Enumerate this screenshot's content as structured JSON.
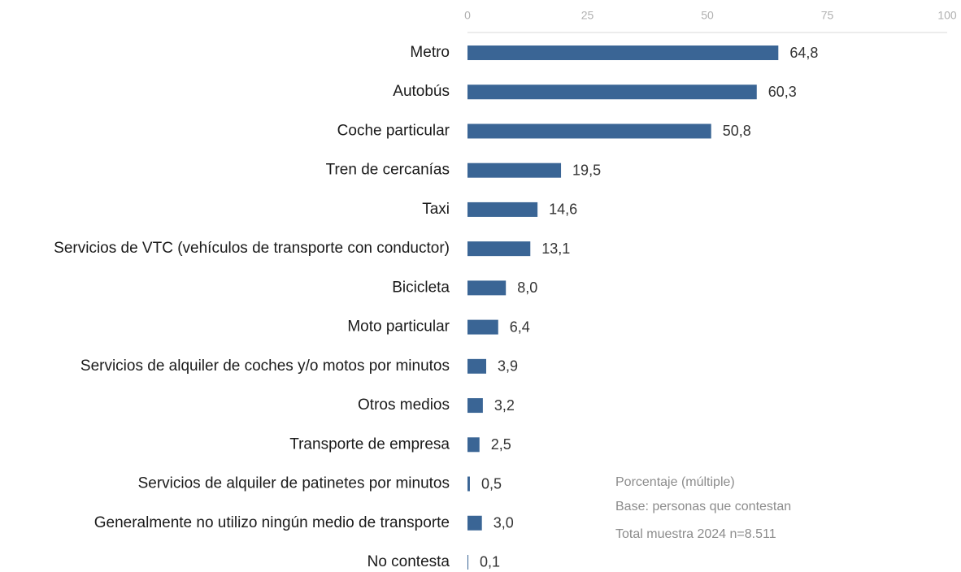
{
  "chart_data": {
    "type": "barh",
    "categories": [
      "Metro",
      "Autobús",
      "Coche particular",
      "Tren de cercanías",
      "Taxi",
      "Servicios de VTC (vehículos de transporte con conductor)",
      "Bicicleta",
      "Moto particular",
      "Servicios de alquiler de coches y/o motos por minutos",
      "Otros medios",
      "Transporte de empresa",
      "Servicios de alquiler de patinetes por minutos",
      "Generalmente no utilizo ningún medio de transporte",
      "No contesta"
    ],
    "values": [
      64.8,
      60.3,
      50.8,
      19.5,
      14.6,
      13.1,
      8.0,
      6.4,
      3.9,
      3.2,
      2.5,
      0.5,
      3.0,
      0.1
    ],
    "value_labels": [
      "64,8",
      "60,3",
      "50,8",
      "19,5",
      "14,6",
      "13,1",
      "8,0",
      "6,4",
      "3,9",
      "3,2",
      "2,5",
      "0,5",
      "3,0",
      "0,1"
    ],
    "color": "#3a6595",
    "xlim": [
      0,
      100
    ],
    "xticks": [
      0,
      25,
      50,
      75,
      100
    ],
    "annotations": [
      "Porcentaje (múltiple)",
      "Base: personas que contestan",
      "Total muestra 2024 n=8.511"
    ]
  }
}
